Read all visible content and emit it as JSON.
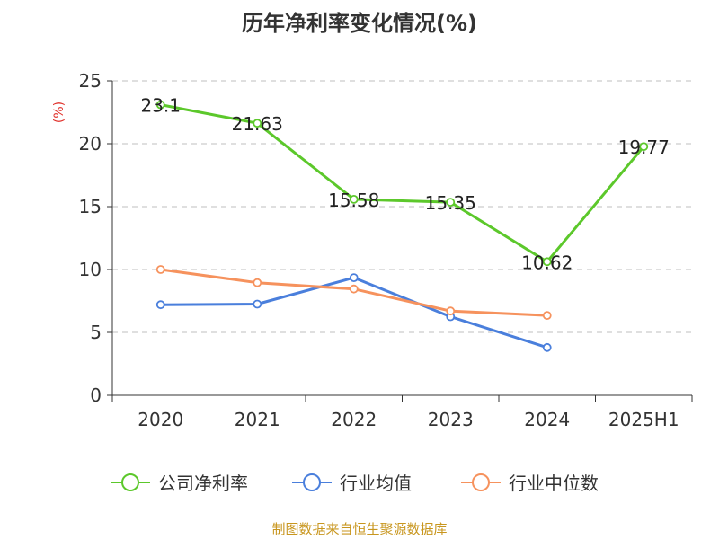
{
  "chart_data": {
    "type": "line",
    "title": "历年净利率变化情况(%)",
    "ylabel": "(%)",
    "categories": [
      "2020",
      "2021",
      "2022",
      "2023",
      "2024",
      "2025H1"
    ],
    "ylim": [
      0,
      25
    ],
    "yticks": [
      0,
      5,
      10,
      15,
      20,
      25
    ],
    "grid": true,
    "legend_position": "bottom",
    "series": [
      {
        "name": "公司净利率",
        "color": "#5cc82b",
        "values": [
          23.1,
          21.63,
          15.58,
          15.35,
          10.62,
          19.77
        ],
        "labels": [
          "23.1",
          "21.63",
          "15.58",
          "15.35",
          "10.62",
          "19.77"
        ]
      },
      {
        "name": "行业均值",
        "color": "#4a7fdc",
        "values": [
          7.2,
          7.25,
          9.35,
          6.25,
          3.8,
          null
        ]
      },
      {
        "name": "行业中位数",
        "color": "#f6925d",
        "values": [
          10.0,
          8.95,
          8.45,
          6.7,
          6.35,
          null
        ]
      }
    ],
    "source": "制图数据来自恒生聚源数据库",
    "colors": {
      "ylabel": "#e0302a",
      "source": "#c8961e",
      "axis": "#333333",
      "grid": "#cccccc"
    }
  }
}
